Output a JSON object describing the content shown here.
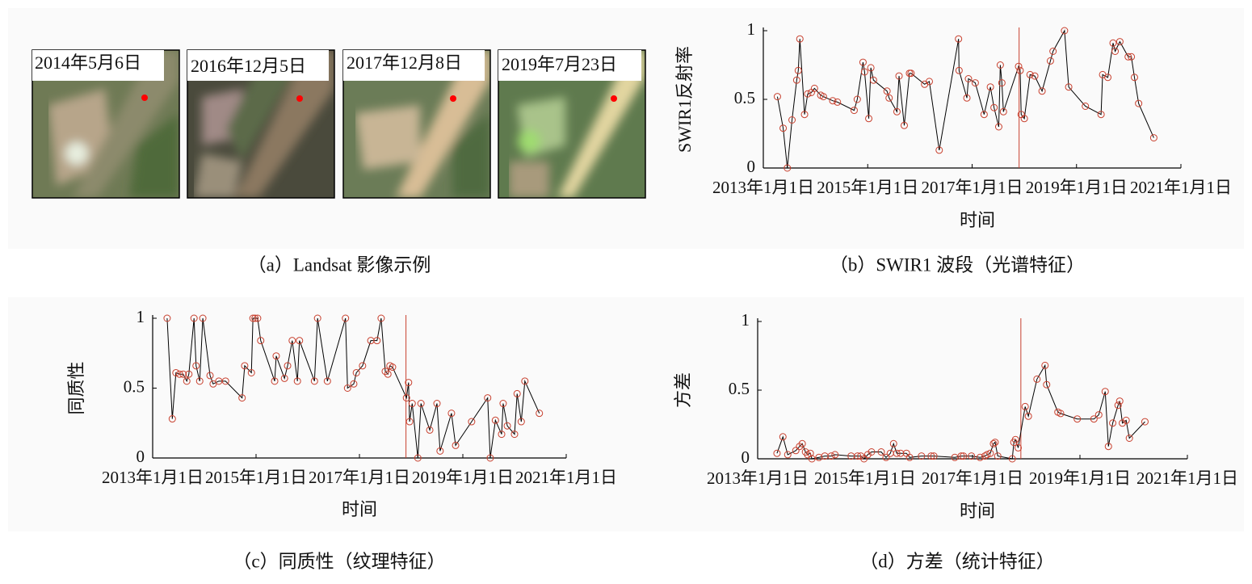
{
  "image_panel": {
    "dates": [
      "2014年5月6日",
      "2016年12月5日",
      "2017年12月8日",
      "2019年7月23日"
    ],
    "caption": "（a）Landsat 影像示例"
  },
  "chart_data": [
    {
      "type": "line",
      "caption": "（b）SWIR1 波段（光谱特征）",
      "x_label": "时间",
      "y_label": "SWIR1反射率",
      "x": [
        2013.27,
        2013.38,
        2013.46,
        2013.55,
        2013.64,
        2013.67,
        2013.7,
        2013.79,
        2013.85,
        2013.92,
        2013.98,
        2014.1,
        2014.15,
        2014.33,
        2014.42,
        2014.74,
        2014.8,
        2014.91,
        2014.94,
        2015.02,
        2015.06,
        2015.11,
        2015.37,
        2015.41,
        2015.56,
        2015.6,
        2015.7,
        2015.8,
        2015.83,
        2016.09,
        2016.18,
        2016.37,
        2016.74,
        2016.75,
        2016.9,
        2016.93,
        2017.06,
        2017.23,
        2017.35,
        2017.42,
        2017.51,
        2017.54,
        2017.57,
        2017.6,
        2017.89,
        2017.92,
        2017.94,
        2018.0,
        2018.11,
        2018.2,
        2018.34,
        2018.5,
        2018.55,
        2018.77,
        2018.85,
        2019.17,
        2019.47,
        2019.5,
        2019.6,
        2019.7,
        2019.74,
        2019.83,
        2019.99,
        2020.05,
        2020.11,
        2020.19,
        2020.48
      ],
      "values": [
        0.52,
        0.29,
        0,
        0.35,
        0.64,
        0.71,
        0.94,
        0.39,
        0.54,
        0.55,
        0.58,
        0.53,
        0.52,
        0.49,
        0.48,
        0.42,
        0.5,
        0.77,
        0.7,
        0.36,
        0.73,
        0.64,
        0.56,
        0.51,
        0.41,
        0.67,
        0.31,
        0.69,
        0.69,
        0.61,
        0.63,
        0.13,
        0.94,
        0.71,
        0.51,
        0.65,
        0.62,
        0.39,
        0.59,
        0.44,
        0.3,
        0.75,
        0.62,
        0.41,
        0.74,
        0.71,
        0.39,
        0.36,
        0.68,
        0.67,
        0.56,
        0.78,
        0.85,
        1.0,
        0.59,
        0.45,
        0.39,
        0.68,
        0.66,
        0.91,
        0.85,
        0.92,
        0.81,
        0.81,
        0.66,
        0.47,
        0.22
      ],
      "line_color": "#000000",
      "marker_color": "#c8402e",
      "vline": 2017.9,
      "vline_color": "#c8402e",
      "xlim": [
        2013,
        2021
      ],
      "xticks": [
        {
          "value": 2013,
          "label": "2013年1月1日"
        },
        {
          "value": 2015,
          "label": "2015年1月1日"
        },
        {
          "value": 2017,
          "label": "2017年1月1日"
        },
        {
          "value": 2019,
          "label": "2019年1月1日"
        },
        {
          "value": 2021,
          "label": "2021年1月1日"
        }
      ],
      "ylim": [
        0,
        1
      ],
      "yticks": [
        0,
        0.5,
        1
      ]
    },
    {
      "type": "line",
      "caption": "（c）同质性（纹理特征）",
      "x_label": "时间",
      "y_label": "同质性",
      "x": [
        2013.28,
        2013.38,
        2013.45,
        2013.52,
        2013.59,
        2013.66,
        2013.7,
        2013.8,
        2013.84,
        2013.91,
        2013.97,
        2014.11,
        2014.17,
        2014.28,
        2014.41,
        2014.73,
        2014.78,
        2014.91,
        2014.94,
        2014.98,
        2015.03,
        2015.09,
        2015.36,
        2015.39,
        2015.55,
        2015.61,
        2015.7,
        2015.8,
        2015.84,
        2016.13,
        2016.19,
        2016.38,
        2016.73,
        2016.77,
        2016.89,
        2016.94,
        2017.06,
        2017.22,
        2017.34,
        2017.42,
        2017.5,
        2017.55,
        2017.59,
        2017.64,
        2017.91,
        2017.95,
        2017.97,
        2018.02,
        2018.13,
        2018.19,
        2018.36,
        2018.5,
        2018.56,
        2018.78,
        2018.86,
        2019.17,
        2019.48,
        2019.53,
        2019.63,
        2019.75,
        2019.78,
        2019.86,
        2020.0,
        2020.05,
        2020.13,
        2020.2,
        2020.48
      ],
      "values": [
        1.0,
        0.28,
        0.61,
        0.6,
        0.6,
        0.55,
        0.6,
        1.0,
        0.66,
        0.55,
        1.0,
        0.59,
        0.53,
        0.55,
        0.55,
        0.43,
        0.66,
        0.61,
        1.0,
        1.0,
        1.0,
        0.84,
        0.55,
        0.73,
        0.57,
        0.66,
        0.84,
        0.55,
        0.84,
        0.55,
        1.0,
        0.55,
        1.0,
        0.5,
        0.53,
        0.61,
        0.66,
        0.84,
        0.84,
        1.0,
        0.62,
        0.6,
        0.66,
        0.65,
        0.43,
        0.54,
        0.26,
        0.39,
        0,
        0.39,
        0.2,
        0.39,
        0.05,
        0.32,
        0.09,
        0.26,
        0.43,
        0,
        0.27,
        0.17,
        0.39,
        0.23,
        0.17,
        0.46,
        0.26,
        0.55,
        0.32
      ],
      "line_color": "#000000",
      "marker_color": "#c8402e",
      "vline": 2017.9,
      "vline_color": "#c8402e",
      "xlim": [
        2013,
        2021
      ],
      "xticks": [
        {
          "value": 2013,
          "label": "2013年1月1日"
        },
        {
          "value": 2015,
          "label": "2015年1月1日"
        },
        {
          "value": 2017,
          "label": "2017年1月1日"
        },
        {
          "value": 2019,
          "label": "2019年1月1日"
        },
        {
          "value": 2021,
          "label": "2021年1月1日"
        }
      ],
      "ylim": [
        0,
        1
      ],
      "yticks": [
        0,
        0.5,
        1
      ]
    },
    {
      "type": "line",
      "caption": "（d）方差（统计特征）",
      "x_label": "时间",
      "y_label": "方差",
      "x": [
        2013.36,
        2013.47,
        2013.56,
        2013.71,
        2013.78,
        2013.83,
        2013.89,
        2013.93,
        2013.98,
        2014.01,
        2014.14,
        2014.25,
        2014.37,
        2014.44,
        2014.74,
        2014.86,
        2014.92,
        2014.98,
        2015.05,
        2015.12,
        2015.3,
        2015.39,
        2015.47,
        2015.53,
        2015.59,
        2015.66,
        2015.77,
        2015.83,
        2016.05,
        2016.23,
        2016.28,
        2016.67,
        2016.79,
        2016.83,
        2016.98,
        2017.14,
        2017.23,
        2017.27,
        2017.33,
        2017.39,
        2017.42,
        2017.47,
        2017.74,
        2017.77,
        2017.8,
        2017.85,
        2017.98,
        2018.04,
        2018.2,
        2018.35,
        2018.38,
        2018.59,
        2018.64,
        2018.95,
        2019.26,
        2019.35,
        2019.47,
        2019.53,
        2019.61,
        2019.71,
        2019.74,
        2019.79,
        2019.86,
        2019.92,
        2020.21
      ],
      "values": [
        0.04,
        0.16,
        0.03,
        0.06,
        0.09,
        0.11,
        0.05,
        0.03,
        0.04,
        0,
        0.01,
        0.02,
        0.02,
        0.03,
        0.02,
        0.02,
        0.02,
        0,
        0.03,
        0.05,
        0.05,
        0.01,
        0.04,
        0.11,
        0.04,
        0.04,
        0.04,
        0.01,
        0.02,
        0.02,
        0.02,
        0.01,
        0.02,
        0.02,
        0.02,
        0.01,
        0.02,
        0.03,
        0.04,
        0.11,
        0.12,
        0.02,
        0,
        0.12,
        0.14,
        0.08,
        0.38,
        0.31,
        0.58,
        0.68,
        0.54,
        0.34,
        0.33,
        0.29,
        0.29,
        0.32,
        0.49,
        0.09,
        0.26,
        0.39,
        0.42,
        0.26,
        0.28,
        0.15,
        0.27
      ],
      "line_color": "#000000",
      "marker_color": "#c8402e",
      "vline": 2017.9,
      "vline_color": "#c8402e",
      "xlim": [
        2013,
        2021
      ],
      "xticks": [
        {
          "value": 2013,
          "label": "2013年1月1日"
        },
        {
          "value": 2015,
          "label": "2015年1月1日"
        },
        {
          "value": 2017,
          "label": "2017年1月1日"
        },
        {
          "value": 2019,
          "label": "2019年1月1日"
        },
        {
          "value": 2021,
          "label": "2021年1月1日"
        }
      ],
      "ylim": [
        0,
        1
      ],
      "yticks": [
        0,
        0.5,
        1
      ]
    }
  ]
}
